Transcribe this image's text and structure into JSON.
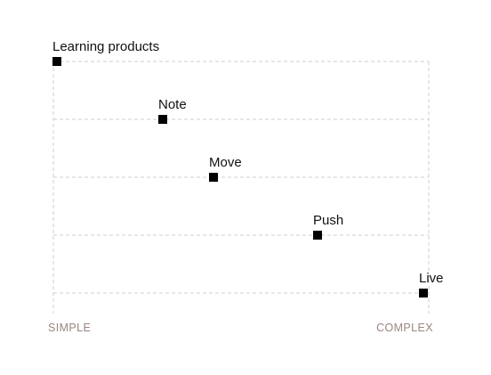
{
  "axis": {
    "left_label": "SIMPLE",
    "right_label": "COMPLEX",
    "label_color": "#9a8580"
  },
  "nodes": [
    {
      "label": "Learning products"
    },
    {
      "label": "Note"
    },
    {
      "label": "Move"
    },
    {
      "label": "Push"
    },
    {
      "label": "Live"
    }
  ],
  "colors": {
    "marker": "#000000",
    "gridline": "#cfcfcf",
    "text": "#111111"
  }
}
